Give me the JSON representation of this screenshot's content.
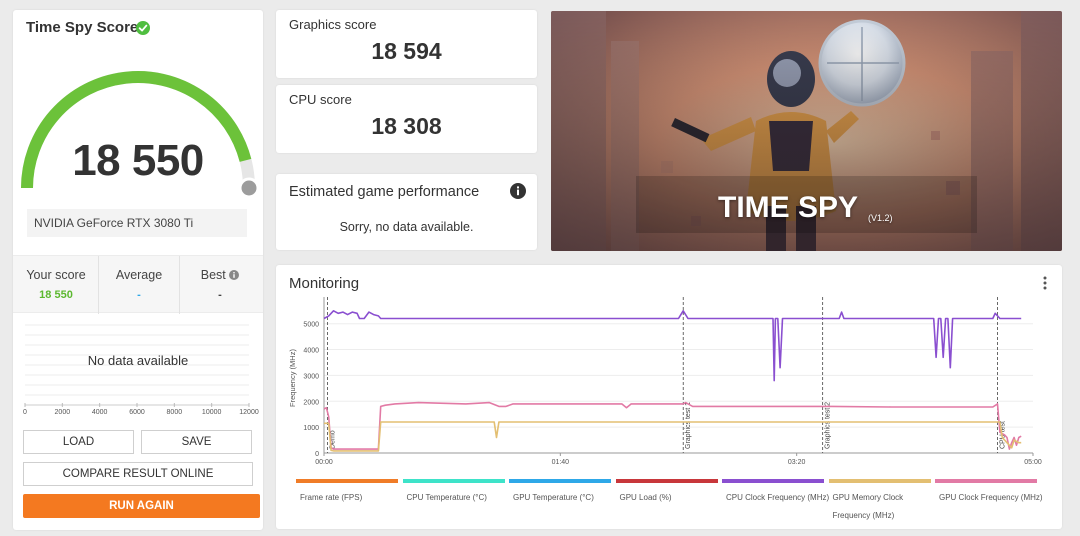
{
  "score_panel": {
    "title": "Time Spy Score",
    "score": "18 550",
    "gauge_fraction": 0.92,
    "gpu_name": "NVIDIA GeForce RTX 3080 Ti",
    "your_score_label": "Your score",
    "your_score_value": "18 550",
    "average_label": "Average",
    "average_value": "-",
    "best_label": "Best",
    "best_value": "-",
    "no_data": "No data available",
    "dist_ticks": [
      "0",
      "2000",
      "4000",
      "6000",
      "8000",
      "10000",
      "12000"
    ],
    "load_label": "LOAD",
    "save_label": "SAVE",
    "compare_label": "COMPARE RESULT ONLINE",
    "run_label": "RUN AGAIN"
  },
  "graphics": {
    "label": "Graphics score",
    "value": "18 594"
  },
  "cpu": {
    "label": "CPU score",
    "value": "18 308"
  },
  "estimated": {
    "title": "Estimated game performance",
    "message": "Sorry, no data available."
  },
  "banner": {
    "title": "TIME SPY",
    "version": "(V1.2)"
  },
  "monitoring": {
    "title": "Monitoring",
    "legend": [
      {
        "label": "Frame rate (FPS)",
        "color": "#f07c28"
      },
      {
        "label": "CPU Temperature (°C)",
        "color": "#3ee3c9"
      },
      {
        "label": "GPU Temperature (°C)",
        "color": "#2ea8e8"
      },
      {
        "label": "GPU Load (%)",
        "color": "#c8373b"
      },
      {
        "label": "CPU Clock Frequency (MHz)",
        "color": "#8a4fd0"
      },
      {
        "label": "GPU Memory Clock Frequency (MHz)",
        "color": "#e3bf72"
      },
      {
        "label": "GPU Clock Frequency (MHz)",
        "color": "#e27aa5"
      }
    ]
  },
  "chart_data": {
    "type": "line",
    "ylabel": "Frequency (MHz)",
    "xlabel": "",
    "y_ticks": [
      0,
      1000,
      2000,
      3000,
      4000,
      5000
    ],
    "x_tick_labels": [
      "00:00",
      "01:40",
      "03:20",
      "05:00"
    ],
    "x_tick_seconds": [
      0,
      100,
      200,
      300
    ],
    "xlim_seconds": [
      0,
      300
    ],
    "ylim": [
      0,
      5800
    ],
    "markers": [
      {
        "label": "Demo",
        "t": 1.5
      },
      {
        "label": "Graphics test 1",
        "t": 152
      },
      {
        "label": "Graphics test 2",
        "t": 211
      },
      {
        "label": "CPU test",
        "t": 285
      }
    ],
    "series": [
      {
        "name": "CPU Clock Frequency (MHz)",
        "color": "#8a4fd0",
        "points": [
          [
            0,
            5200
          ],
          [
            2,
            5300
          ],
          [
            4,
            5500
          ],
          [
            6,
            5400
          ],
          [
            8,
            5450
          ],
          [
            10,
            5350
          ],
          [
            12,
            5450
          ],
          [
            14,
            5400
          ],
          [
            15,
            5200
          ],
          [
            17,
            5200
          ],
          [
            19,
            5450
          ],
          [
            21,
            5350
          ],
          [
            23,
            5300
          ],
          [
            24,
            5200
          ],
          [
            60,
            5200
          ],
          [
            100,
            5200
          ],
          [
            150,
            5200
          ],
          [
            151,
            5350
          ],
          [
            152,
            5500
          ],
          [
            154,
            5200
          ],
          [
            190,
            5200
          ],
          [
            190.5,
            2800
          ],
          [
            191,
            5200
          ],
          [
            192,
            5200
          ],
          [
            193,
            3300
          ],
          [
            194,
            5200
          ],
          [
            210,
            5200
          ],
          [
            218,
            5200
          ],
          [
            219,
            5450
          ],
          [
            220,
            5200
          ],
          [
            258,
            5200
          ],
          [
            259,
            3700
          ],
          [
            260,
            5200
          ],
          [
            261,
            5200
          ],
          [
            262,
            3700
          ],
          [
            263,
            5200
          ],
          [
            264,
            5200
          ],
          [
            265,
            3300
          ],
          [
            266,
            5200
          ],
          [
            283,
            5200
          ],
          [
            284,
            5400
          ],
          [
            286,
            5200
          ],
          [
            295,
            5200
          ]
        ]
      },
      {
        "name": "GPU Clock Frequency (MHz)",
        "color": "#e27aa5",
        "points": [
          [
            0,
            1700
          ],
          [
            1,
            1750
          ],
          [
            2,
            1400
          ],
          [
            3,
            200
          ],
          [
            4,
            150
          ],
          [
            23,
            150
          ],
          [
            24,
            1800
          ],
          [
            26,
            1850
          ],
          [
            30,
            1900
          ],
          [
            40,
            1950
          ],
          [
            60,
            1900
          ],
          [
            70,
            1950
          ],
          [
            74,
            1800
          ],
          [
            77,
            1800
          ],
          [
            80,
            1900
          ],
          [
            100,
            1900
          ],
          [
            126,
            1900
          ],
          [
            128,
            1750
          ],
          [
            130,
            1900
          ],
          [
            152,
            1900
          ],
          [
            153,
            1950
          ],
          [
            156,
            1800
          ],
          [
            190,
            1800
          ],
          [
            211,
            1800
          ],
          [
            215,
            1800
          ],
          [
            240,
            1780
          ],
          [
            265,
            1780
          ],
          [
            283,
            1780
          ],
          [
            285,
            1900
          ],
          [
            286,
            800
          ],
          [
            288,
            700
          ],
          [
            289,
            600
          ],
          [
            290,
            150
          ],
          [
            291,
            400
          ],
          [
            292,
            600
          ],
          [
            293,
            300
          ],
          [
            294,
            600
          ],
          [
            295,
            650
          ]
        ]
      },
      {
        "name": "GPU Memory Clock Frequency (MHz)",
        "color": "#e3bf72",
        "points": [
          [
            0,
            1150
          ],
          [
            2,
            1150
          ],
          [
            3,
            100
          ],
          [
            4,
            80
          ],
          [
            23,
            80
          ],
          [
            24,
            1200
          ],
          [
            72,
            1200
          ],
          [
            73,
            600
          ],
          [
            74,
            1200
          ],
          [
            150,
            1200
          ],
          [
            211,
            1200
          ],
          [
            285,
            1200
          ],
          [
            286,
            1200
          ],
          [
            287,
            600
          ],
          [
            289,
            400
          ],
          [
            291,
            200
          ],
          [
            292,
            500
          ],
          [
            294,
            400
          ],
          [
            295,
            400
          ]
        ]
      }
    ]
  }
}
